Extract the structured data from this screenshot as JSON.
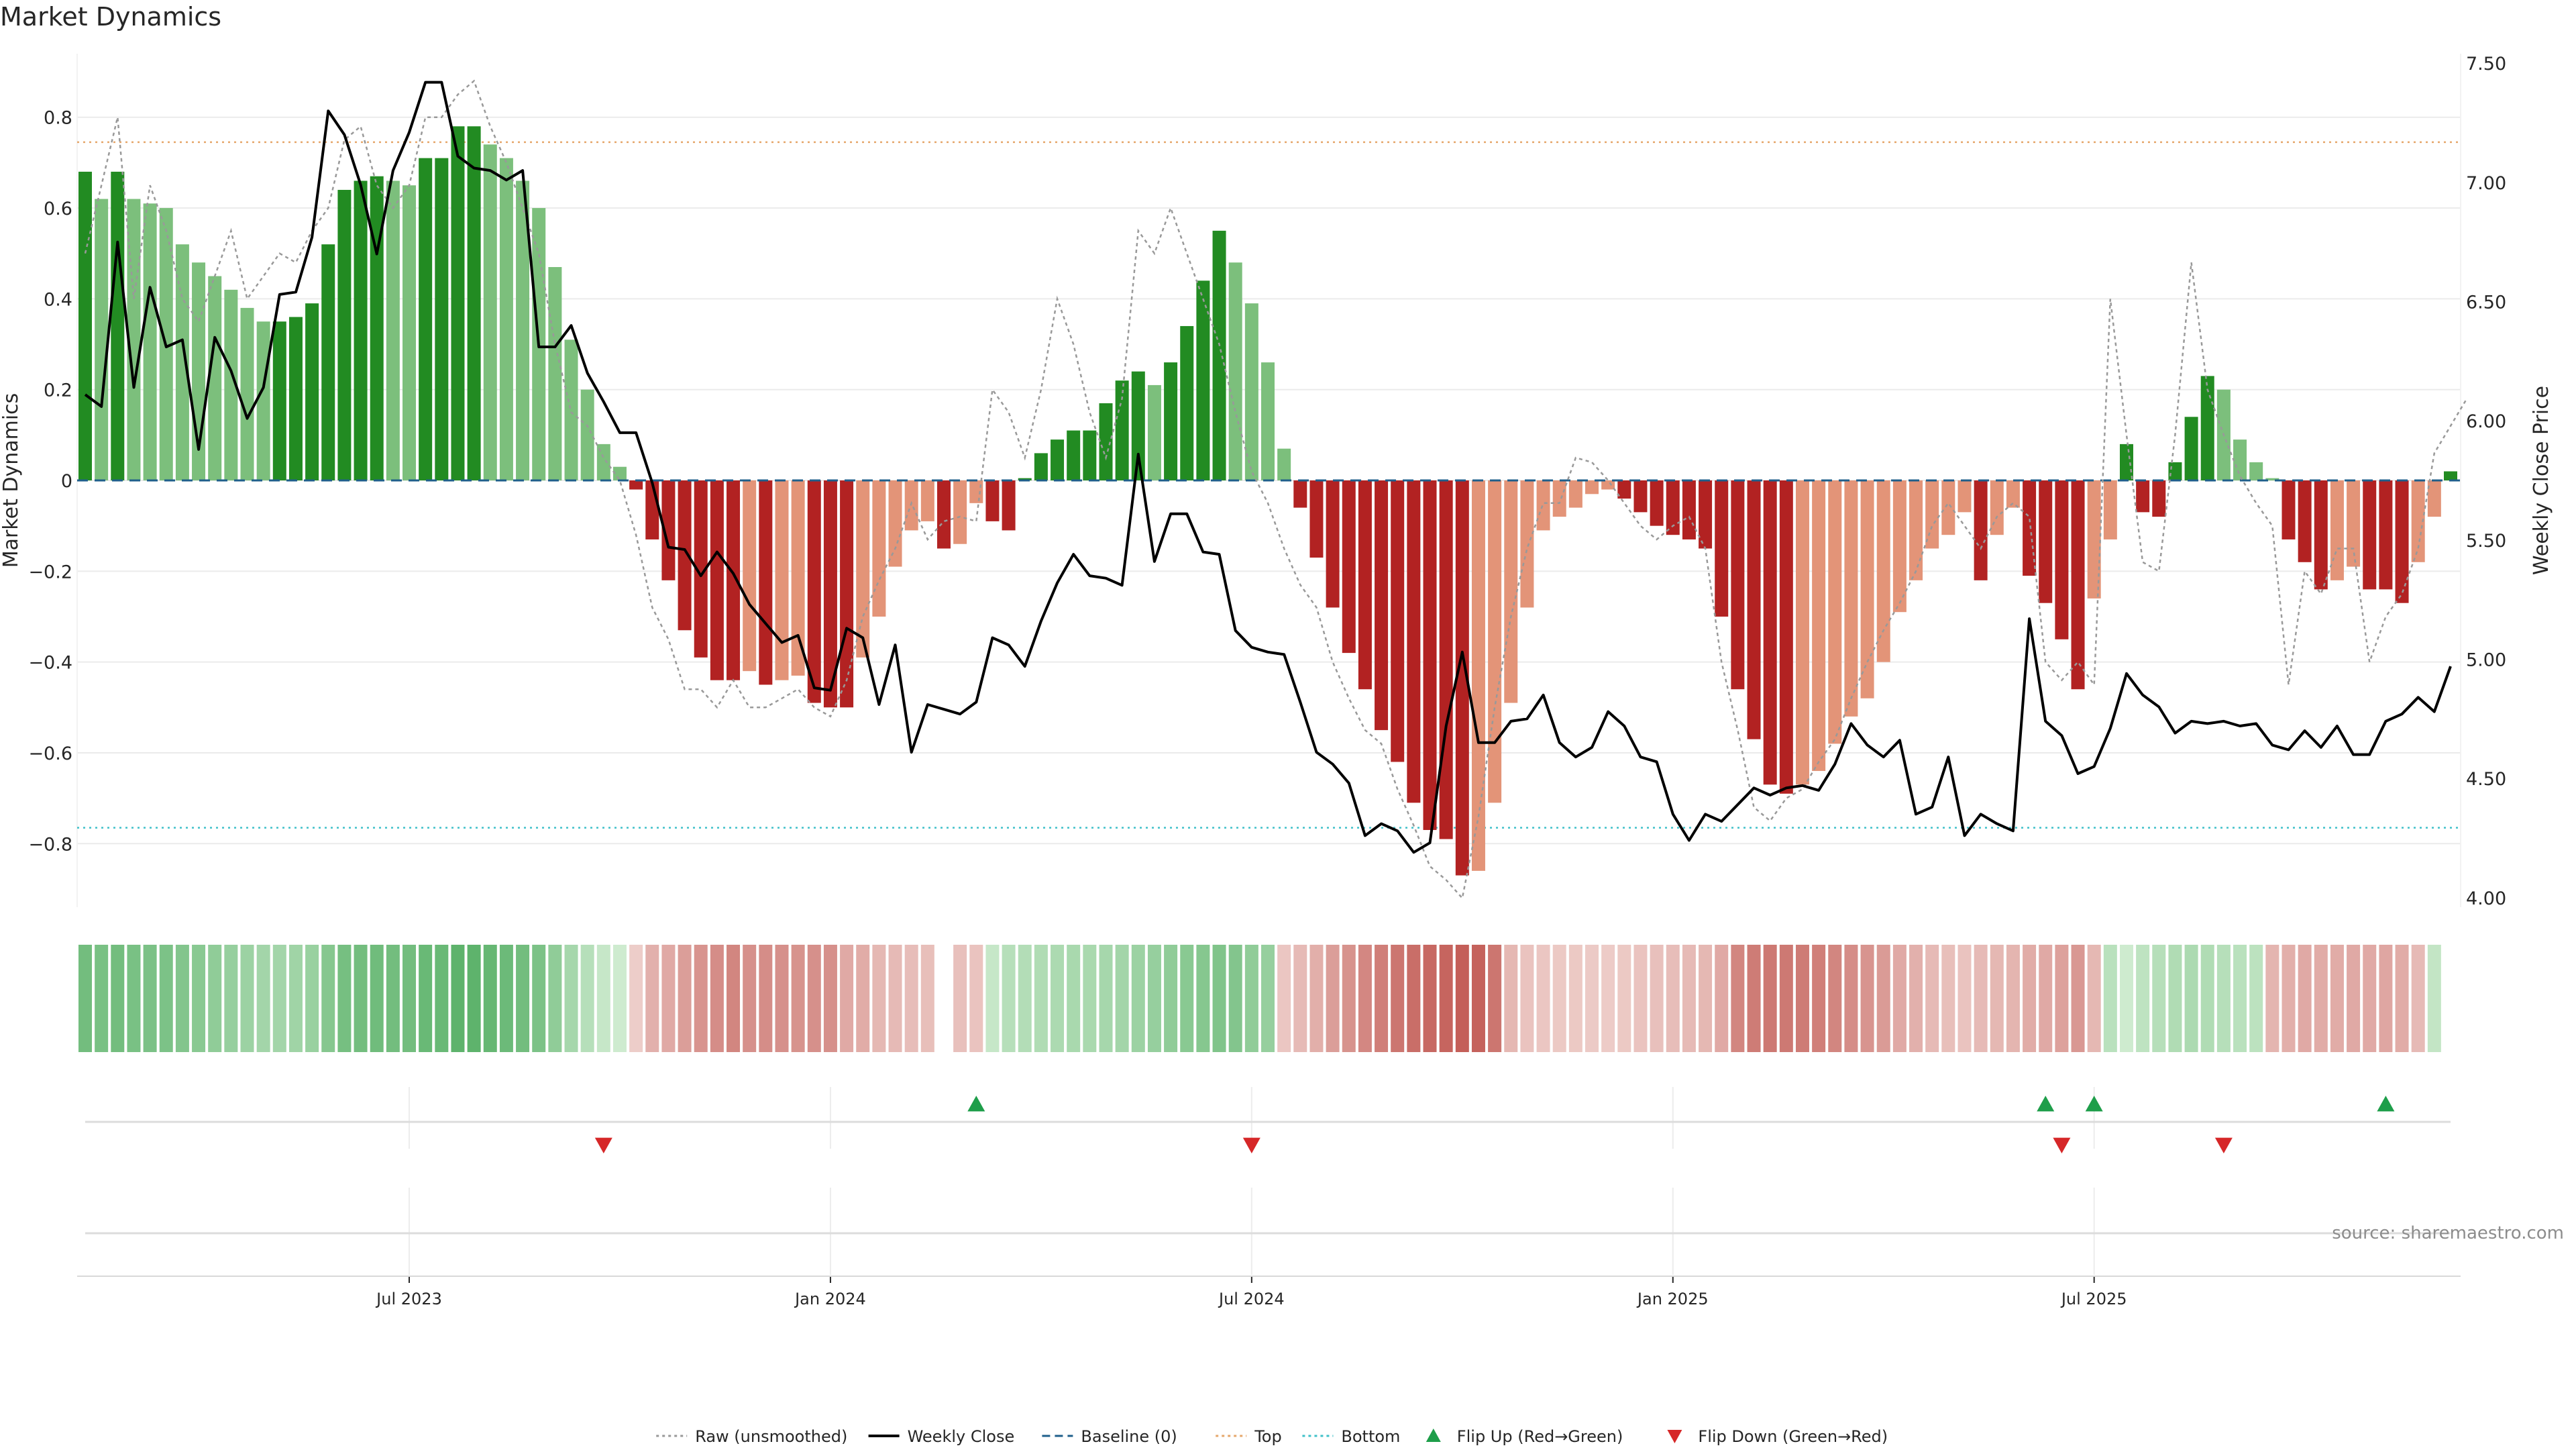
{
  "chart_data": {
    "type": "bar",
    "title": "Market Dynamics",
    "y_left_label": "Market Dynamics",
    "y_right_label": "Weekly Close Price",
    "source": "source: sharemaestro.com",
    "y_left_range": [
      -0.94,
      0.94
    ],
    "y_right_range": [
      3.96,
      7.54
    ],
    "y_left_ticks": [
      {
        "v": 0.8,
        "label": "0.8"
      },
      {
        "v": 0.6,
        "label": "0.6"
      },
      {
        "v": 0.4,
        "label": "0.4"
      },
      {
        "v": 0.2,
        "label": "0.2"
      },
      {
        "v": 0,
        "label": "0"
      },
      {
        "v": -0.2,
        "label": "−0.2"
      },
      {
        "v": -0.4,
        "label": "−0.4"
      },
      {
        "v": -0.6,
        "label": "−0.6"
      },
      {
        "v": -0.8,
        "label": "−0.8"
      }
    ],
    "y_right_ticks": [
      {
        "v": 7.5,
        "label": "7.50"
      },
      {
        "v": 7.0,
        "label": "7.00"
      },
      {
        "v": 6.5,
        "label": "6.50"
      },
      {
        "v": 6.0,
        "label": "6.00"
      },
      {
        "v": 5.5,
        "label": "5.50"
      },
      {
        "v": 5.0,
        "label": "5.00"
      },
      {
        "v": 4.5,
        "label": "4.50"
      },
      {
        "v": 4.0,
        "label": "4.00"
      }
    ],
    "x_ticks": [
      {
        "week": 20,
        "label": "Jul 2023"
      },
      {
        "week": 46,
        "label": "Jan 2024"
      },
      {
        "week": 72,
        "label": "Jul 2024"
      },
      {
        "week": 98,
        "label": "Jan 2025"
      },
      {
        "week": 124,
        "label": "Jul 2025"
      }
    ],
    "top_line": 0.745,
    "bottom_line": -0.765,
    "baseline": 0,
    "bars": [
      0.68,
      0.62,
      0.68,
      0.62,
      0.61,
      0.6,
      0.52,
      0.48,
      0.45,
      0.42,
      0.38,
      0.35,
      0.35,
      0.36,
      0.39,
      0.52,
      0.64,
      0.66,
      0.67,
      0.66,
      0.65,
      0.71,
      0.71,
      0.78,
      0.78,
      0.74,
      0.71,
      0.66,
      0.6,
      0.47,
      0.31,
      0.2,
      0.08,
      0.03,
      -0.02,
      -0.13,
      -0.22,
      -0.33,
      -0.39,
      -0.44,
      -0.44,
      -0.42,
      -0.45,
      -0.44,
      -0.43,
      -0.49,
      -0.5,
      -0.5,
      -0.39,
      -0.3,
      -0.19,
      -0.11,
      -0.09,
      -0.15,
      -0.14,
      -0.05,
      -0.09,
      -0.11,
      0.005,
      0.06,
      0.09,
      0.11,
      0.11,
      0.17,
      0.22,
      0.24,
      0.21,
      0.26,
      0.34,
      0.44,
      0.55,
      0.48,
      0.39,
      0.26,
      0.07,
      -0.06,
      -0.17,
      -0.28,
      -0.38,
      -0.46,
      -0.55,
      -0.62,
      -0.71,
      -0.77,
      -0.79,
      -0.87,
      -0.86,
      -0.71,
      -0.49,
      -0.28,
      -0.11,
      -0.08,
      -0.06,
      -0.03,
      -0.02,
      -0.04,
      -0.07,
      -0.1,
      -0.12,
      -0.13,
      -0.15,
      -0.3,
      -0.46,
      -0.57,
      -0.67,
      -0.69,
      -0.67,
      -0.64,
      -0.58,
      -0.52,
      -0.48,
      -0.4,
      -0.29,
      -0.22,
      -0.15,
      -0.12,
      -0.07,
      -0.22,
      -0.12,
      -0.06,
      -0.21,
      -0.27,
      -0.35,
      -0.46,
      -0.26,
      -0.13,
      0.08,
      -0.07,
      -0.08,
      0.04,
      0.14,
      0.23,
      0.2,
      0.09,
      0.04,
      0.005,
      -0.13,
      -0.18,
      -0.24,
      -0.22,
      -0.19,
      -0.24,
      -0.24,
      -0.27,
      -0.18,
      -0.08,
      0.02
    ],
    "weekly_close": [
      6.11,
      6.06,
      6.75,
      6.14,
      6.56,
      6.31,
      6.34,
      5.88,
      6.35,
      6.21,
      6.01,
      6.14,
      6.53,
      6.54,
      6.77,
      7.3,
      7.2,
      6.99,
      6.7,
      7.05,
      7.21,
      7.42,
      7.42,
      7.11,
      7.06,
      7.05,
      7.01,
      7.05,
      6.31,
      6.31,
      6.4,
      6.2,
      6.08,
      5.95,
      5.95,
      5.74,
      5.47,
      5.46,
      5.35,
      5.45,
      5.36,
      5.23,
      5.15,
      5.07,
      5.1,
      4.88,
      4.87,
      5.13,
      5.09,
      4.81,
      5.06,
      4.61,
      4.81,
      4.79,
      4.77,
      4.82,
      5.09,
      5.06,
      4.97,
      5.16,
      5.32,
      5.44,
      5.35,
      5.34,
      5.31,
      5.86,
      5.41,
      5.61,
      5.61,
      5.45,
      5.44,
      5.12,
      5.05,
      5.03,
      5.02,
      4.82,
      4.61,
      4.56,
      4.48,
      4.26,
      4.31,
      4.28,
      4.19,
      4.23,
      4.72,
      5.03,
      4.65,
      4.65,
      4.74,
      4.75,
      4.85,
      4.65,
      4.59,
      4.63,
      4.78,
      4.72,
      4.59,
      4.57,
      4.35,
      4.24,
      4.35,
      4.32,
      4.39,
      4.46,
      4.43,
      4.46,
      4.47,
      4.45,
      4.56,
      4.73,
      4.64,
      4.59,
      4.66,
      4.35,
      4.38,
      4.59,
      4.26,
      4.35,
      4.31,
      4.28,
      5.17,
      4.74,
      4.68,
      4.52,
      4.55,
      4.71,
      4.94,
      4.85,
      4.8,
      4.69,
      4.74,
      4.73,
      4.74,
      4.72,
      4.73,
      4.64,
      4.62,
      4.7,
      4.63,
      4.72,
      4.6,
      4.6,
      4.74,
      4.77,
      4.84,
      4.78,
      4.97
    ],
    "raw": [
      0.5,
      0.65,
      0.8,
      0.4,
      0.65,
      0.55,
      0.4,
      0.35,
      0.45,
      0.55,
      0.4,
      0.45,
      0.5,
      0.48,
      0.55,
      0.6,
      0.75,
      0.78,
      0.65,
      0.6,
      0.65,
      0.8,
      0.8,
      0.85,
      0.88,
      0.78,
      0.7,
      0.6,
      0.5,
      0.3,
      0.15,
      0.12,
      0.05,
      0.0,
      -0.12,
      -0.28,
      -0.35,
      -0.46,
      -0.46,
      -0.5,
      -0.44,
      -0.5,
      -0.5,
      -0.48,
      -0.46,
      -0.5,
      -0.52,
      -0.44,
      -0.3,
      -0.22,
      -0.15,
      -0.05,
      -0.13,
      -0.09,
      -0.08,
      -0.09,
      0.2,
      0.15,
      0.05,
      0.2,
      0.4,
      0.3,
      0.15,
      0.05,
      0.18,
      0.55,
      0.5,
      0.6,
      0.5,
      0.4,
      0.3,
      0.15,
      0.02,
      -0.05,
      -0.15,
      -0.23,
      -0.28,
      -0.4,
      -0.48,
      -0.55,
      -0.58,
      -0.68,
      -0.76,
      -0.85,
      -0.88,
      -0.92,
      -0.74,
      -0.5,
      -0.3,
      -0.15,
      -0.05,
      -0.05,
      0.05,
      0.04,
      0.0,
      -0.05,
      -0.1,
      -0.13,
      -0.1,
      -0.08,
      -0.15,
      -0.4,
      -0.55,
      -0.72,
      -0.75,
      -0.7,
      -0.68,
      -0.62,
      -0.57,
      -0.48,
      -0.4,
      -0.33,
      -0.27,
      -0.2,
      -0.1,
      -0.05,
      -0.1,
      -0.15,
      -0.08,
      -0.05,
      -0.08,
      -0.4,
      -0.44,
      -0.4,
      -0.45,
      0.4,
      0.1,
      -0.18,
      -0.2,
      0.1,
      0.48,
      0.2,
      0.1,
      0.01,
      -0.05,
      -0.1,
      -0.45,
      -0.2,
      -0.25,
      -0.15,
      -0.15,
      -0.4,
      -0.3,
      -0.25,
      -0.15,
      0.06,
      0.12,
      0.18
    ],
    "heat_strip": [
      0.62,
      0.58,
      0.62,
      0.58,
      0.57,
      0.56,
      0.52,
      0.48,
      0.44,
      0.4,
      0.36,
      0.32,
      0.32,
      0.34,
      0.38,
      0.5,
      0.6,
      0.62,
      0.64,
      0.62,
      0.62,
      0.68,
      0.68,
      0.75,
      0.75,
      0.7,
      0.66,
      0.62,
      0.56,
      0.44,
      0.3,
      0.2,
      0.1,
      0.05,
      -0.05,
      -0.25,
      -0.3,
      -0.38,
      -0.45,
      -0.5,
      -0.55,
      -0.48,
      -0.5,
      -0.48,
      -0.46,
      -0.48,
      -0.48,
      -0.3,
      -0.28,
      -0.2,
      -0.18,
      -0.16,
      -0.15,
      null,
      -0.14,
      -0.12,
      0.1,
      0.2,
      0.22,
      0.24,
      0.26,
      0.28,
      0.28,
      0.3,
      0.32,
      0.36,
      0.4,
      0.44,
      0.48,
      0.5,
      0.54,
      0.52,
      0.44,
      0.4,
      -0.1,
      -0.18,
      -0.26,
      -0.38,
      -0.46,
      -0.54,
      -0.6,
      -0.66,
      -0.72,
      -0.76,
      -0.78,
      -0.82,
      -0.8,
      -0.66,
      -0.2,
      -0.12,
      -0.1,
      -0.08,
      -0.08,
      -0.07,
      -0.06,
      -0.08,
      -0.12,
      -0.14,
      -0.16,
      -0.18,
      -0.2,
      -0.3,
      -0.55,
      -0.62,
      -0.64,
      -0.64,
      -0.62,
      -0.6,
      -0.55,
      -0.5,
      -0.45,
      -0.4,
      -0.3,
      -0.25,
      -0.18,
      -0.15,
      -0.12,
      -0.18,
      -0.2,
      -0.22,
      -0.28,
      -0.3,
      -0.36,
      -0.42,
      -0.2,
      0.18,
      0.05,
      0.15,
      0.2,
      0.24,
      0.26,
      0.24,
      0.2,
      0.18,
      0.16,
      -0.22,
      -0.26,
      -0.3,
      -0.28,
      -0.28,
      -0.3,
      -0.3,
      -0.32,
      -0.28,
      -0.18,
      0.12
    ],
    "flip_up_weeks": [
      55,
      121,
      124,
      142
    ],
    "flip_down_weeks": [
      32,
      72,
      122,
      132
    ],
    "legend": [
      {
        "label": "Raw (unsmoothed)",
        "kind": "line",
        "color": "#999999",
        "dash": "dotted"
      },
      {
        "label": "Weekly Close",
        "kind": "line",
        "color": "#000000",
        "dash": "solid"
      },
      {
        "label": "Baseline (0)",
        "kind": "line",
        "color": "#1f5f8b",
        "dash": "dashed"
      },
      {
        "label": "Top",
        "kind": "line",
        "color": "#e6a76b",
        "dash": "dotted"
      },
      {
        "label": "Bottom",
        "kind": "line",
        "color": "#3fc1c9",
        "dash": "dotted"
      },
      {
        "label": "Flip Up (Red→Green)",
        "kind": "triangle-up",
        "color": "#1e9e4a"
      },
      {
        "label": "Flip Down (Green→Red)",
        "kind": "triangle-down",
        "color": "#d62728"
      }
    ],
    "colors": {
      "green_strong": "#228b22",
      "green_light": "#7cbf7c",
      "red_strong": "#b22222",
      "red_light": "#e39478",
      "top": "#e6a76b",
      "bottom": "#3fc1c9",
      "baseline": "#1f5f8b",
      "raw": "#999999",
      "close": "#000000",
      "flip_up": "#1e9e4a",
      "flip_down": "#d62728"
    }
  }
}
